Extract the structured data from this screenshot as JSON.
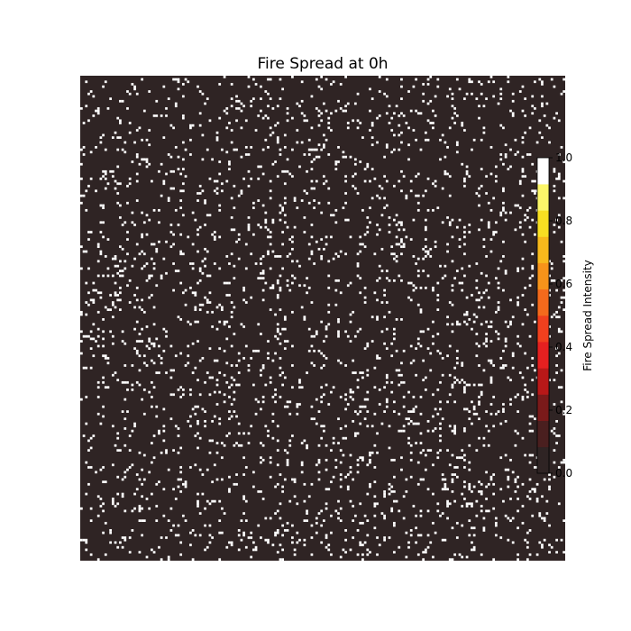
{
  "chart_data": {
    "type": "heatmap",
    "title": "Fire Spread at 0h",
    "xlabel": "",
    "ylabel": "",
    "grid": false,
    "axes_visible": false,
    "grid_size": [
      200,
      200
    ],
    "background_value": 0.0,
    "spot_value": 1.0,
    "spot_fraction": 0.07,
    "colorbar": {
      "label": "Fire Spread Intensity",
      "range": [
        0.0,
        1.0
      ],
      "ticks": [
        0.0,
        0.2,
        0.4,
        0.6,
        0.8,
        1.0
      ],
      "tick_labels": [
        "0.0",
        "0.2",
        "0.4",
        "0.6",
        "0.8",
        "1.0"
      ],
      "colormap_stops": [
        "#2f2424",
        "#4a1f1f",
        "#7a1a1a",
        "#b81818",
        "#e52020",
        "#f0401e",
        "#f46a1c",
        "#f6931a",
        "#f7b91c",
        "#f8df22",
        "#fbf66a",
        "#ffffff"
      ]
    }
  }
}
